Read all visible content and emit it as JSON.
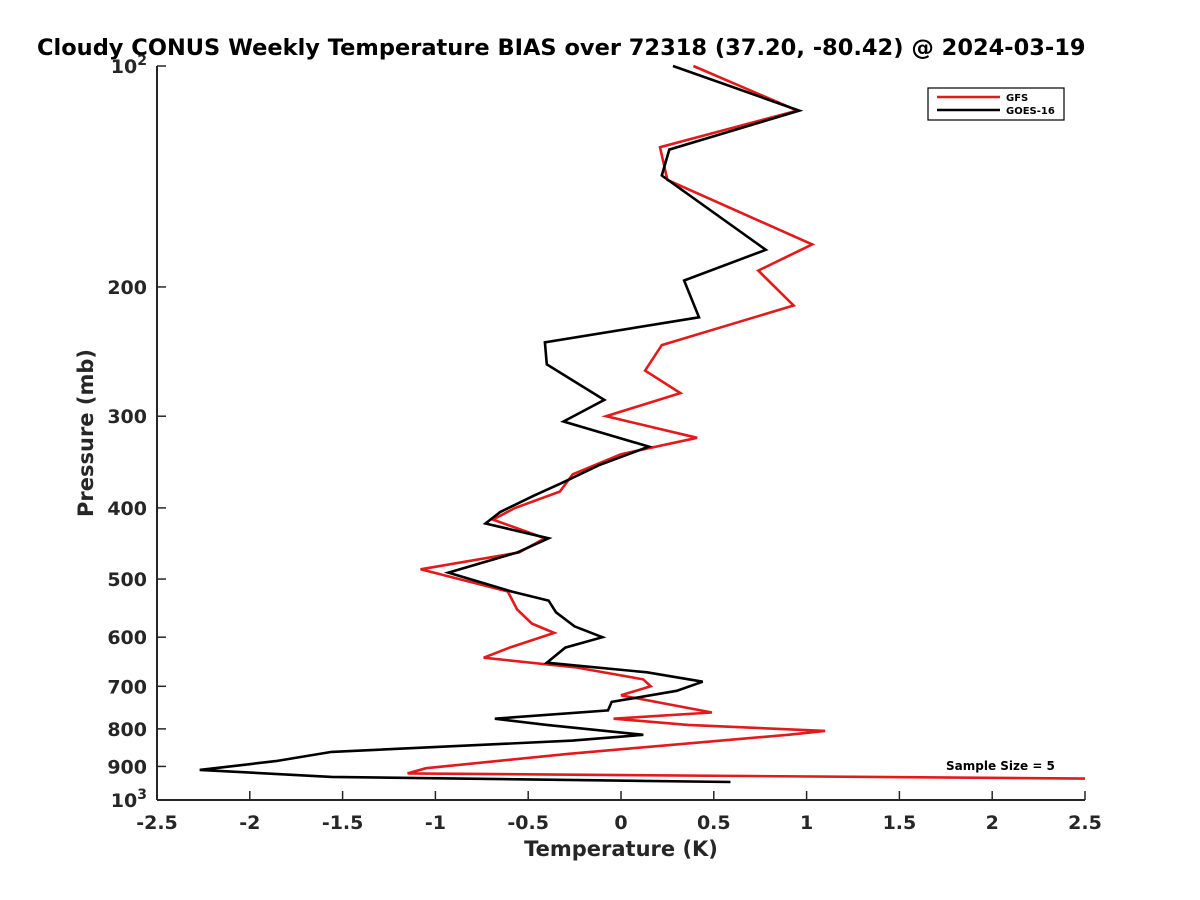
{
  "chart_data": {
    "type": "line",
    "title": "Cloudy CONUS Weekly Temperature BIAS over 72318 (37.20, -80.42) @ 2024-03-19",
    "xlabel": "Temperature (K)",
    "ylabel": "Pressure (mb)",
    "xlim": [
      -2.5,
      2.5
    ],
    "ylim": [
      100,
      1000
    ],
    "yscale": "log",
    "y_reversed": true,
    "x_ticks": [
      "-2.5",
      "-2",
      "-1.5",
      "-1",
      "-0.5",
      "0",
      "0.5",
      "1",
      "1.5",
      "2",
      "2.5"
    ],
    "y_ticks": [
      {
        "value": 100,
        "label": "10",
        "exp": "2"
      },
      {
        "value": 200,
        "label": "200"
      },
      {
        "value": 300,
        "label": "300"
      },
      {
        "value": 400,
        "label": "400"
      },
      {
        "value": 500,
        "label": "500"
      },
      {
        "value": 600,
        "label": "600"
      },
      {
        "value": 700,
        "label": "700"
      },
      {
        "value": 800,
        "label": "800"
      },
      {
        "value": 900,
        "label": "900"
      },
      {
        "value": 1000,
        "label": "10",
        "exp": "3"
      }
    ],
    "legend_position": "top-right",
    "grid": false,
    "series": [
      {
        "name": "GFS",
        "color": "#e31a1c",
        "points": [
          [
            0.39,
            100
          ],
          [
            0.95,
            115
          ],
          [
            0.21,
            129
          ],
          [
            0.25,
            143
          ],
          [
            1.03,
            175
          ],
          [
            0.74,
            190
          ],
          [
            0.93,
            212
          ],
          [
            0.22,
            240
          ],
          [
            0.13,
            260
          ],
          [
            0.32,
            279
          ],
          [
            -0.08,
            300
          ],
          [
            0.41,
            321
          ],
          [
            0.0,
            338
          ],
          [
            -0.26,
            360
          ],
          [
            -0.33,
            380
          ],
          [
            -0.57,
            400
          ],
          [
            -0.69,
            415
          ],
          [
            -0.41,
            440
          ],
          [
            -0.55,
            460
          ],
          [
            -1.08,
            485
          ],
          [
            -0.61,
            520
          ],
          [
            -0.56,
            550
          ],
          [
            -0.48,
            575
          ],
          [
            -0.36,
            592
          ],
          [
            -0.6,
            620
          ],
          [
            -0.74,
            640
          ],
          [
            -0.24,
            660
          ],
          [
            0.12,
            685
          ],
          [
            0.16,
            700
          ],
          [
            -0.0,
            720
          ],
          [
            0.49,
            760
          ],
          [
            -0.04,
            775
          ],
          [
            0.36,
            790
          ],
          [
            1.1,
            805
          ],
          [
            0.9,
            815
          ],
          [
            -0.28,
            865
          ],
          [
            -1.05,
            905
          ],
          [
            -1.15,
            920
          ],
          [
            2.5,
            935
          ]
        ]
      },
      {
        "name": "GOES-16",
        "color": "#000000",
        "points": [
          [
            0.28,
            100
          ],
          [
            0.96,
            115
          ],
          [
            0.26,
            130
          ],
          [
            0.22,
            141
          ],
          [
            0.78,
            178
          ],
          [
            0.34,
            196
          ],
          [
            0.42,
            220
          ],
          [
            -0.41,
            238
          ],
          [
            -0.4,
            255
          ],
          [
            -0.09,
            285
          ],
          [
            -0.31,
            305
          ],
          [
            0.15,
            330
          ],
          [
            -0.12,
            350
          ],
          [
            -0.32,
            370
          ],
          [
            -0.47,
            385
          ],
          [
            -0.65,
            405
          ],
          [
            -0.73,
            420
          ],
          [
            -0.39,
            440
          ],
          [
            -0.56,
            460
          ],
          [
            -0.93,
            490
          ],
          [
            -0.59,
            520
          ],
          [
            -0.39,
            535
          ],
          [
            -0.35,
            555
          ],
          [
            -0.25,
            580
          ],
          [
            -0.1,
            600
          ],
          [
            -0.3,
            620
          ],
          [
            -0.4,
            650
          ],
          [
            0.14,
            670
          ],
          [
            0.44,
            690
          ],
          [
            0.3,
            710
          ],
          [
            -0.05,
            735
          ],
          [
            -0.07,
            755
          ],
          [
            -0.68,
            775
          ],
          [
            -0.4,
            790
          ],
          [
            0.12,
            815
          ],
          [
            -0.26,
            830
          ],
          [
            -1.56,
            860
          ],
          [
            -1.86,
            885
          ],
          [
            -2.27,
            910
          ],
          [
            -1.56,
            930
          ],
          [
            0.59,
            945
          ]
        ]
      }
    ],
    "annotations": [
      {
        "text": "Sample Size = 5"
      }
    ]
  }
}
